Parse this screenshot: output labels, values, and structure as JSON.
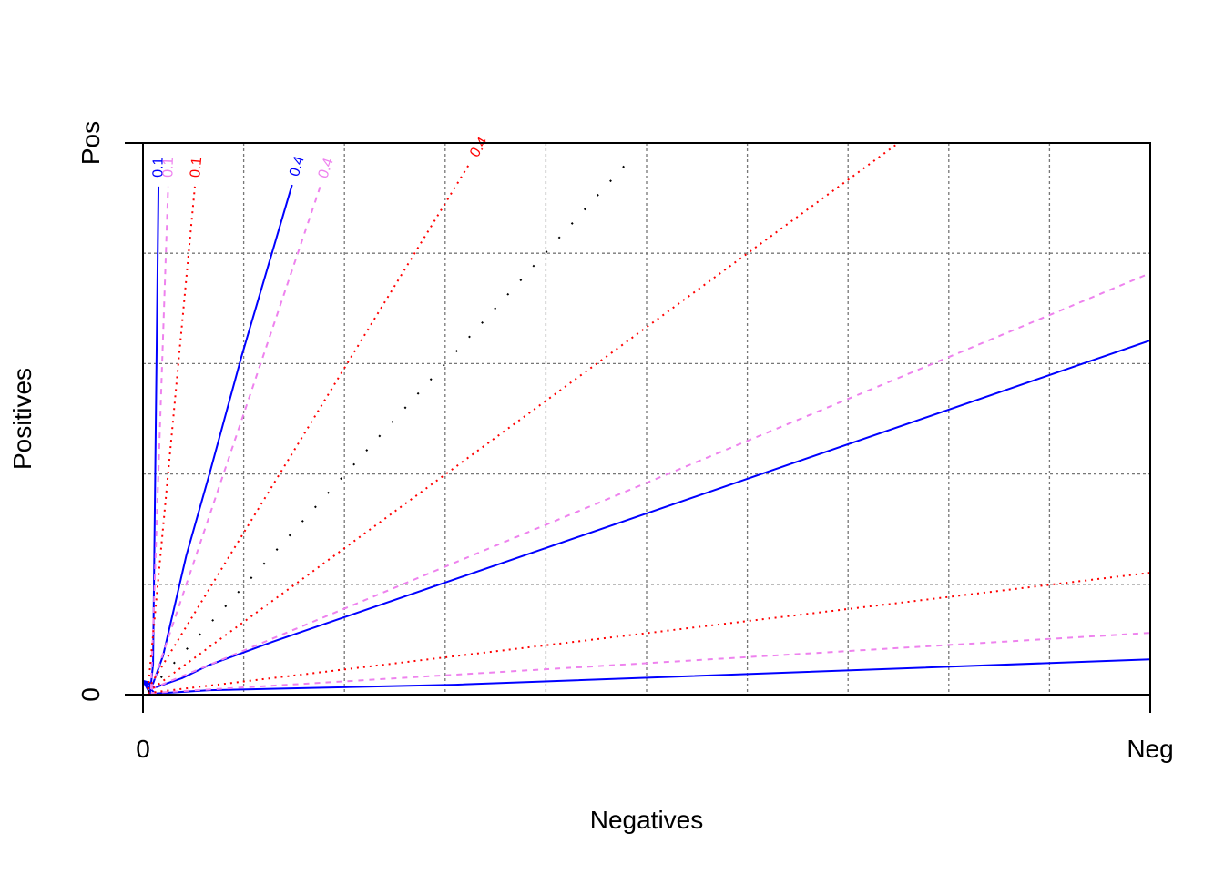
{
  "chart_data": {
    "type": "line",
    "xlabel": "Negatives",
    "ylabel": "Positives",
    "xlim": [
      0,
      1
    ],
    "ylim": [
      0,
      1
    ],
    "xticks": [
      0,
      {
        "value": 1,
        "label": "Neg"
      }
    ],
    "yticks": [
      0,
      {
        "value": 1,
        "label": "Pos"
      }
    ],
    "xgrid": [
      0.1,
      0.2,
      0.3,
      0.4,
      0.5,
      0.6,
      0.7,
      0.8,
      0.9
    ],
    "ygrid": [
      0.2,
      0.4,
      0.6,
      0.8
    ],
    "grid": true,
    "series": [
      {
        "color": "#0000ff",
        "dash": "solid",
        "label": "0.1",
        "x": [
          0,
          0.007,
          0.01,
          0.0154
        ],
        "values": [
          0.025,
          0.002,
          0.055,
          0.921
        ]
      },
      {
        "color": "#0000ff",
        "dash": "solid",
        "label": "0.4",
        "x": [
          0,
          0.01,
          0.02,
          0.043,
          0.066,
          0.098,
          0.148
        ],
        "values": [
          0.025,
          0.02,
          0.071,
          0.252,
          0.4,
          0.614,
          0.924
        ]
      },
      {
        "color": "#0000ff",
        "dash": "solid",
        "x": [
          0,
          0.012,
          0.039,
          0.066,
          0.129,
          1
        ],
        "values": [
          0.025,
          0.013,
          0.03,
          0.054,
          0.096,
          0.642
        ]
      },
      {
        "color": "#0000ff",
        "dash": "solid",
        "x": [
          0,
          0.012,
          0.066,
          0.31,
          1
        ],
        "values": [
          0.025,
          0.002,
          0.008,
          0.018,
          0.064
        ]
      },
      {
        "color": "#ee82ee",
        "dash": "dashed",
        "label": "0.1",
        "x": [
          0.008,
          0.025
        ],
        "values": [
          0.01,
          0.921
        ]
      },
      {
        "color": "#ee82ee",
        "dash": "dashed",
        "label": "0.4",
        "x": [
          0.008,
          0.176
        ],
        "values": [
          0.01,
          0.921
        ]
      },
      {
        "color": "#ee82ee",
        "dash": "dashed",
        "x": [
          0.008,
          1
        ],
        "values": [
          0.01,
          0.764
        ]
      },
      {
        "color": "#ee82ee",
        "dash": "dashed",
        "x": [
          0.008,
          1
        ],
        "values": [
          0.003,
          0.112
        ]
      },
      {
        "color": "#ff0000",
        "dash": "dotted",
        "label": "0.1",
        "x": [
          0.005,
          0.0515
        ],
        "values": [
          0.01,
          0.921
        ]
      },
      {
        "color": "#ff0000",
        "dash": "dotted",
        "label": "0.4",
        "x": [
          0.005,
          0.324
        ],
        "values": [
          0.01,
          0.962
        ]
      },
      {
        "color": "#ff0000",
        "dash": "dotted",
        "x": [
          0.005,
          0.75
        ],
        "values": [
          0.005,
          1
        ]
      },
      {
        "color": "#ff0000",
        "dash": "dotted",
        "x": [
          0.005,
          1
        ],
        "values": [
          0.003,
          0.221
        ]
      },
      {
        "color": "#000000",
        "dash": "sparse",
        "x": [
          0.005,
          0.488
        ],
        "values": [
          0.005,
          0.979
        ]
      }
    ]
  }
}
